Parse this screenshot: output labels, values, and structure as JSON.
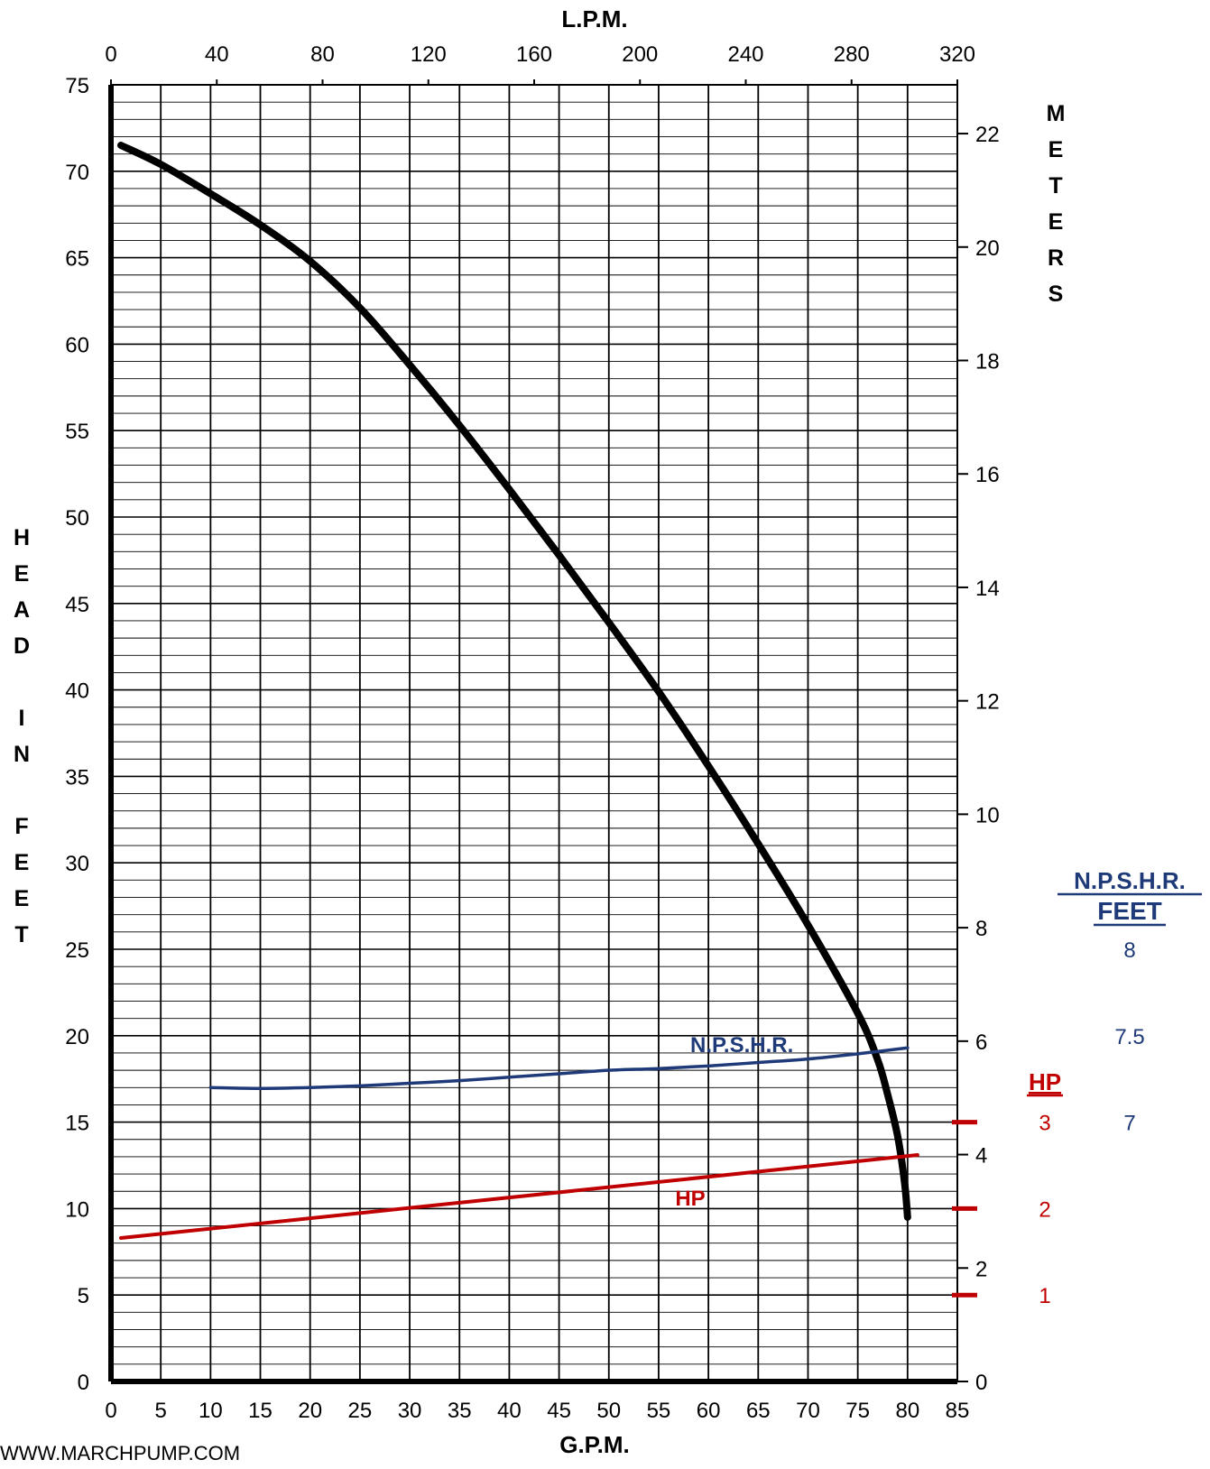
{
  "chart_data": {
    "type": "line",
    "axes": {
      "bottom": {
        "label": "G.P.M.",
        "range": [
          0,
          85
        ],
        "ticks": [
          0,
          5,
          10,
          15,
          20,
          25,
          30,
          35,
          40,
          45,
          50,
          55,
          60,
          65,
          70,
          75,
          80,
          85
        ]
      },
      "top": {
        "label": "L.P.M.",
        "range": [
          0,
          320
        ],
        "ticks": [
          0,
          40,
          80,
          120,
          160,
          200,
          240,
          280,
          320
        ]
      },
      "left": {
        "label": "H\nE\nA\nD\n\nI\nN\n\nF\nE\nE\nT",
        "range": [
          0,
          75
        ],
        "ticks": [
          0,
          5,
          10,
          15,
          20,
          25,
          30,
          35,
          40,
          45,
          50,
          55,
          60,
          65,
          70,
          75
        ]
      },
      "right": {
        "label": "M\nE\nT\nE\nR\nS",
        "range": [
          0,
          22.86
        ],
        "ticks": [
          0,
          2,
          4,
          6,
          8,
          10,
          12,
          14,
          16,
          18,
          20,
          22
        ]
      }
    },
    "grid": true,
    "series": [
      {
        "name": "",
        "color": "#000000",
        "points": [
          [
            1,
            71.5
          ],
          [
            5,
            70.4
          ],
          [
            10,
            68.7
          ],
          [
            15,
            66.9
          ],
          [
            20,
            64.8
          ],
          [
            25,
            62.1
          ],
          [
            30,
            58.8
          ],
          [
            35,
            55.3
          ],
          [
            40,
            51.6
          ],
          [
            45,
            47.8
          ],
          [
            50,
            43.9
          ],
          [
            55,
            39.9
          ],
          [
            60,
            35.6
          ],
          [
            65,
            31.1
          ],
          [
            70,
            26.4
          ],
          [
            75,
            21.3
          ],
          [
            77,
            18.6
          ],
          [
            78,
            16.6
          ],
          [
            79,
            14.2
          ],
          [
            79.7,
            11.5
          ],
          [
            80,
            9.5
          ]
        ]
      },
      {
        "name": "N.P.S.H.R.",
        "color": "#1f3a78",
        "points": [
          [
            10,
            17
          ],
          [
            15,
            16.95
          ],
          [
            20,
            17
          ],
          [
            25,
            17.1
          ],
          [
            30,
            17.25
          ],
          [
            35,
            17.4
          ],
          [
            40,
            17.6
          ],
          [
            45,
            17.8
          ],
          [
            50,
            18
          ],
          [
            55,
            18.1
          ],
          [
            60,
            18.25
          ],
          [
            65,
            18.45
          ],
          [
            70,
            18.65
          ],
          [
            75,
            18.95
          ],
          [
            80,
            19.3
          ]
        ]
      },
      {
        "name": "HP",
        "color": "#c00000",
        "points": [
          [
            1,
            8.3
          ],
          [
            81,
            13.1
          ]
        ]
      }
    ],
    "hp_scale": {
      "title": "HP",
      "color": "#c00000",
      "marks": [
        {
          "label": "1",
          "head": 5
        },
        {
          "label": "2",
          "head": 10
        },
        {
          "label": "3",
          "head": 15
        }
      ]
    },
    "npshr_scale": {
      "title": "N.P.S.H.R.",
      "subtitle": "FEET",
      "color": "#1f3a78",
      "marks": [
        {
          "label": "8",
          "head": 25
        },
        {
          "label": "7.5",
          "head": 20
        },
        {
          "label": "7",
          "head": 15
        }
      ]
    }
  },
  "footer": {
    "website": "WWW.MARCHPUMP.COM"
  }
}
